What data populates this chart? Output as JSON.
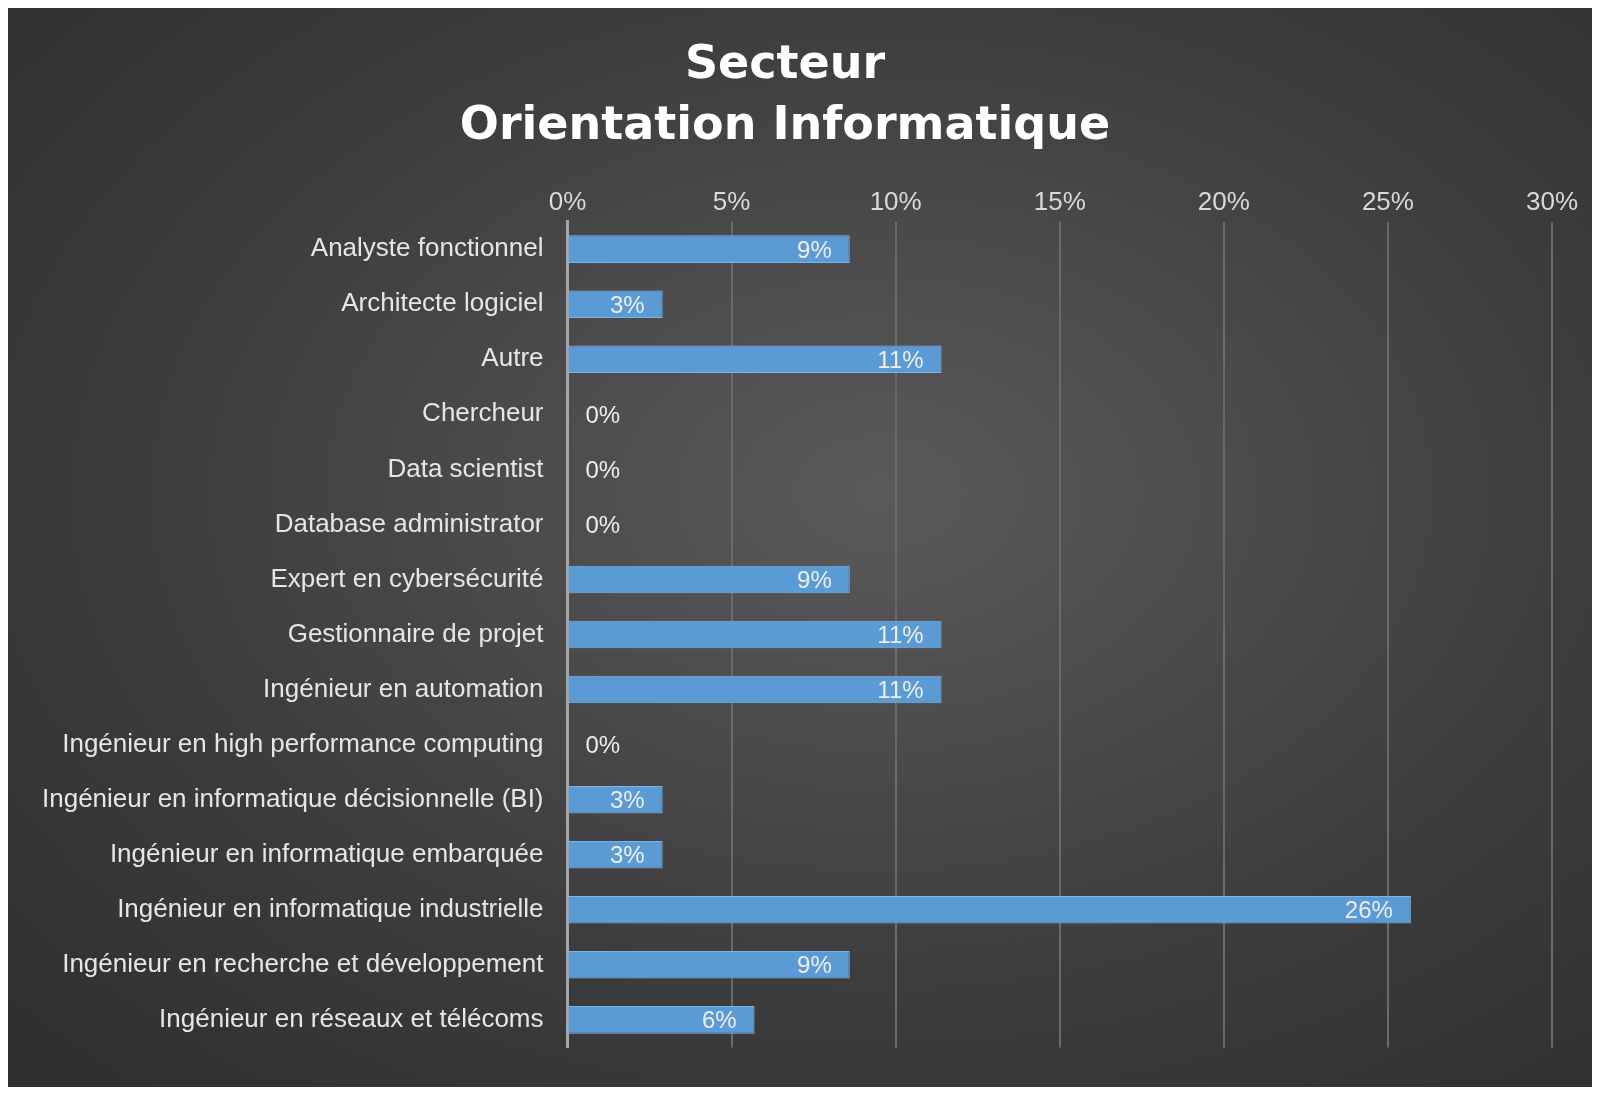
{
  "chart_data": {
    "type": "bar",
    "orientation": "horizontal",
    "title": "Secteur",
    "subtitle": "Orientation Informatique",
    "categories": [
      "Analyste fonctionnel",
      "Architecte logiciel",
      "Autre",
      "Chercheur",
      "Data scientist",
      "Database administrator",
      "Expert en cybersécurité",
      "Gestionnaire de projet",
      "Ingénieur en automation",
      "Ingénieur en high performance computing",
      "Ingénieur en informatique décisionnelle (BI)",
      "Ingénieur en informatique embarquée",
      "Ingénieur en informatique industrielle",
      "Ingénieur en recherche et développement",
      "Ingénieur en réseaux et télécoms"
    ],
    "values": [
      8.6,
      2.9,
      11.4,
      0,
      0,
      0,
      8.6,
      11.4,
      11.4,
      0,
      2.9,
      2.9,
      25.7,
      8.6,
      5.7
    ],
    "value_labels": [
      "9%",
      "3%",
      "11%",
      "0%",
      "0%",
      "0%",
      "9%",
      "11%",
      "11%",
      "0%",
      "3%",
      "3%",
      "26%",
      "9%",
      "6%"
    ],
    "color": "#5b9bd5",
    "xlim": [
      0,
      30
    ],
    "xticks": [
      {
        "value": 0,
        "label": "0%"
      },
      {
        "value": 5,
        "label": "5%"
      },
      {
        "value": 10,
        "label": "10%"
      },
      {
        "value": 15,
        "label": "15%"
      },
      {
        "value": 20,
        "label": "20%"
      },
      {
        "value": 25,
        "label": "25%"
      },
      {
        "value": 30,
        "label": "30%"
      }
    ],
    "grid": "x",
    "legend": false
  }
}
